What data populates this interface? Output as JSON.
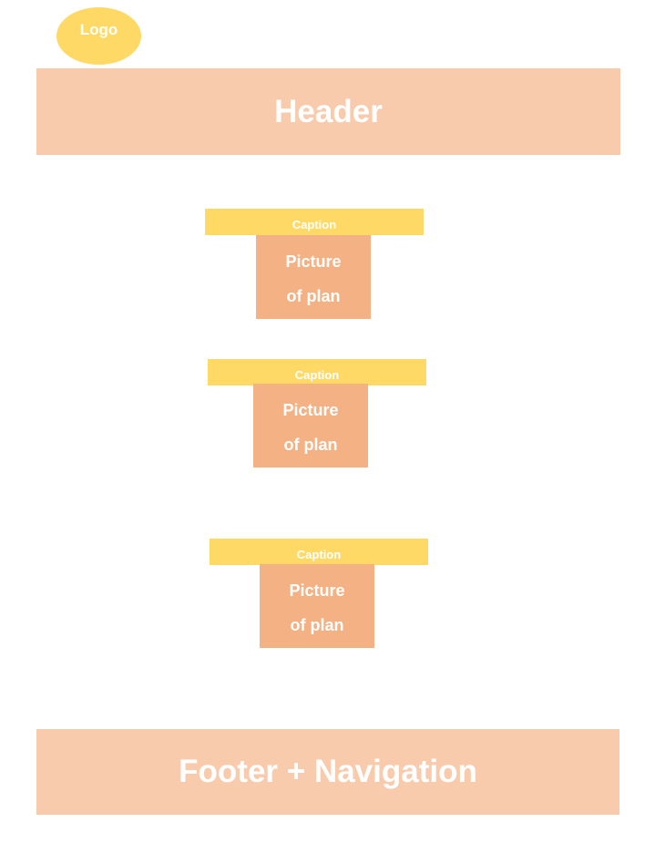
{
  "logo": {
    "label": "Logo"
  },
  "header": {
    "label": "Header"
  },
  "plans": [
    {
      "caption": "Caption",
      "picture_line1": "Picture",
      "picture_line2": "of plan"
    },
    {
      "caption": "Caption",
      "picture_line1": "Picture",
      "picture_line2": "of plan"
    },
    {
      "caption": "Caption",
      "picture_line1": "Picture",
      "picture_line2": "of plan"
    }
  ],
  "footer": {
    "label": "Footer + Navigation"
  },
  "colors": {
    "logo_fill": "#ffd966",
    "header_footer_fill": "#f8cbad",
    "caption_fill": "#ffd966",
    "picture_fill": "#f4b183",
    "text": "#ffffff"
  }
}
